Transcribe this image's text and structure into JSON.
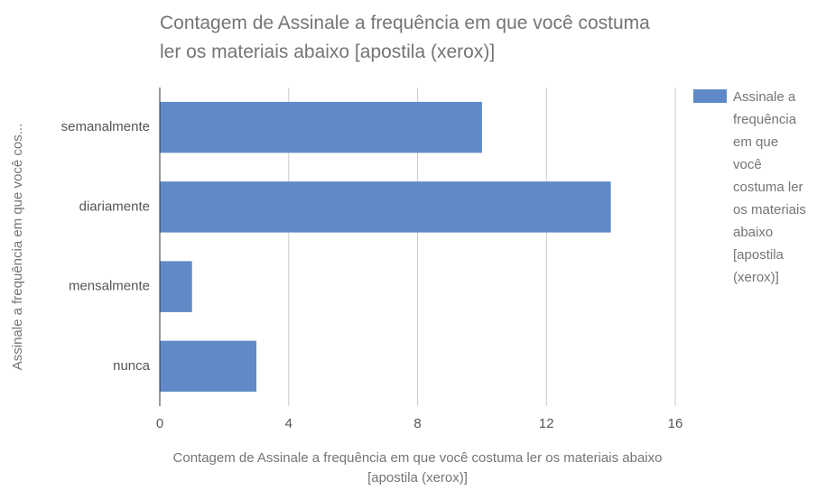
{
  "chart_data": {
    "type": "hbar",
    "title": "Contagem de Assinale a frequência em que você costuma ler os materiais abaixo [apostila (xerox)]",
    "x_label": "Contagem de Assinale a frequência em que você costuma ler os materiais abaixo [apostila (xerox)]",
    "y_label": "Assinale a frequência em que você cos...",
    "categories": [
      "semanalmente",
      "diariamente",
      "mensalmente",
      "nunca"
    ],
    "series": [
      {
        "name": "Assinale a frequência em que você costuma ler os materiais abaixo [apostila (xerox)]",
        "color": "#5f8ac7",
        "values": [
          10,
          14,
          1,
          3
        ]
      }
    ],
    "xlim": [
      0,
      16
    ],
    "xticks": [
      0,
      4,
      8,
      12,
      16
    ],
    "grid": true,
    "legend": "right"
  }
}
